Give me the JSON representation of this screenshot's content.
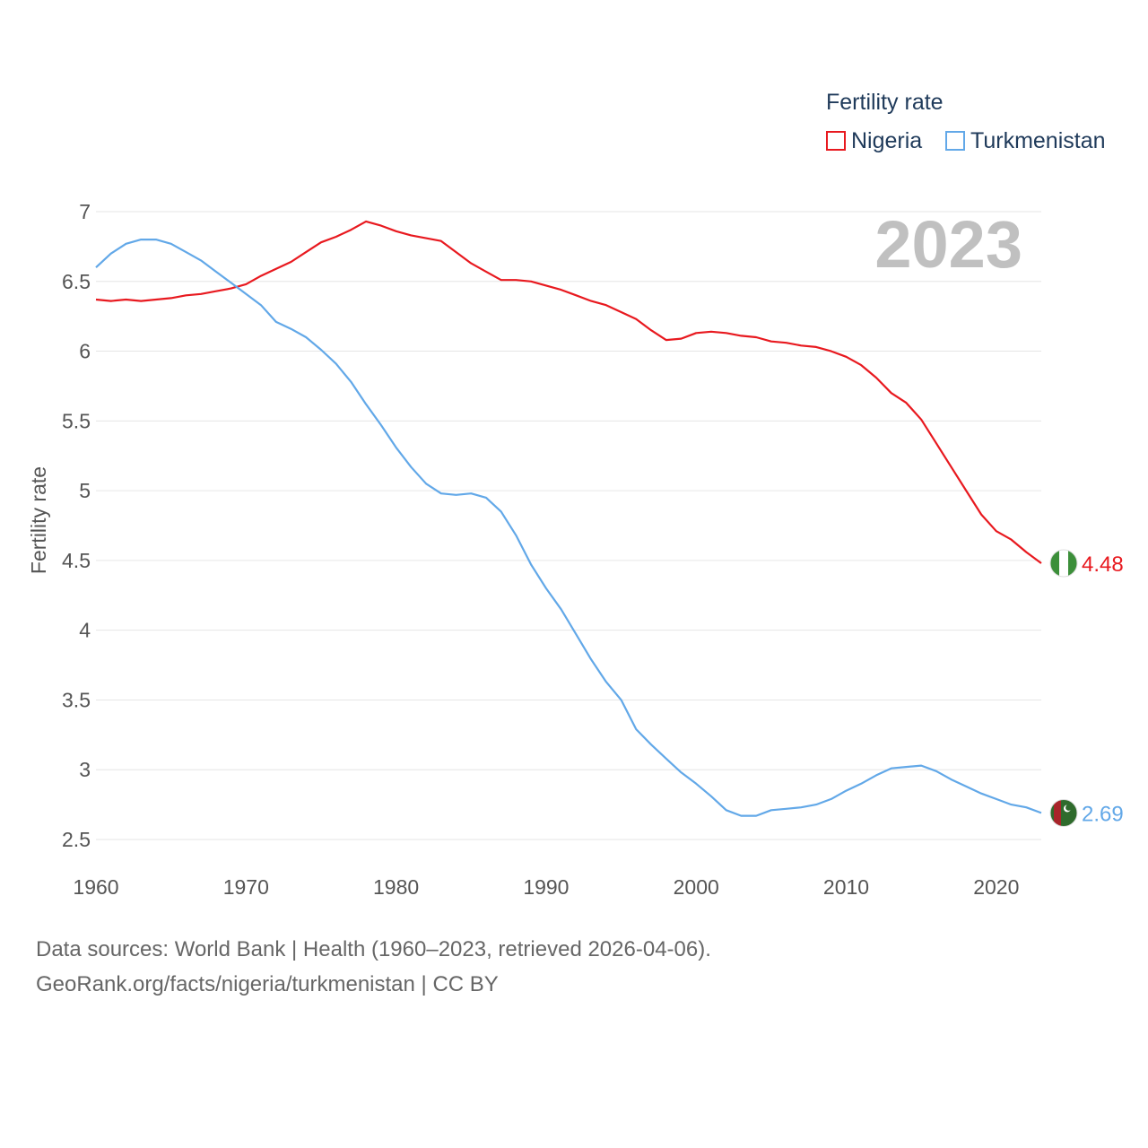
{
  "legend": {
    "title": "Fertility rate",
    "series": [
      {
        "name": "Nigeria",
        "color": "#e8191f"
      },
      {
        "name": "Turkmenistan",
        "color": "#62a8e8"
      }
    ]
  },
  "footer": {
    "line1": "Data sources: World Bank | Health (1960–2023, retrieved 2026-04-06).",
    "line2": "GeoRank.org/facts/nigeria/turkmenistan | CC BY"
  },
  "chart_data": {
    "type": "line",
    "year_label": "2023",
    "ylabel": "Fertility rate",
    "xlabel": "",
    "xlim": [
      1960,
      2023
    ],
    "ylim": [
      2.5,
      7
    ],
    "x_ticks": [
      1960,
      1970,
      1980,
      1990,
      2000,
      2010,
      2020
    ],
    "y_ticks": [
      "2.5",
      "3",
      "3.5",
      "4",
      "4.5",
      "5",
      "5.5",
      "6",
      "6.5",
      "7"
    ],
    "x": [
      1960,
      1961,
      1962,
      1963,
      1964,
      1965,
      1966,
      1967,
      1968,
      1969,
      1970,
      1971,
      1972,
      1973,
      1974,
      1975,
      1976,
      1977,
      1978,
      1979,
      1980,
      1981,
      1982,
      1983,
      1984,
      1985,
      1986,
      1987,
      1988,
      1989,
      1990,
      1991,
      1992,
      1993,
      1994,
      1995,
      1996,
      1997,
      1998,
      1999,
      2000,
      2001,
      2002,
      2003,
      2004,
      2005,
      2006,
      2007,
      2008,
      2009,
      2010,
      2011,
      2012,
      2013,
      2014,
      2015,
      2016,
      2017,
      2018,
      2019,
      2020,
      2021,
      2022,
      2023
    ],
    "series": [
      {
        "name": "Nigeria",
        "color": "#e8191f",
        "end_label": "4.48",
        "values": [
          6.37,
          6.36,
          6.37,
          6.36,
          6.37,
          6.38,
          6.4,
          6.41,
          6.43,
          6.45,
          6.48,
          6.54,
          6.59,
          6.64,
          6.71,
          6.78,
          6.82,
          6.87,
          6.93,
          6.9,
          6.86,
          6.83,
          6.81,
          6.79,
          6.71,
          6.63,
          6.57,
          6.51,
          6.51,
          6.5,
          6.47,
          6.44,
          6.4,
          6.36,
          6.33,
          6.28,
          6.23,
          6.15,
          6.08,
          6.09,
          6.13,
          6.14,
          6.13,
          6.11,
          6.1,
          6.07,
          6.06,
          6.04,
          6.03,
          6.0,
          5.96,
          5.9,
          5.81,
          5.7,
          5.63,
          5.51,
          5.34,
          5.17,
          5.0,
          4.83,
          4.71,
          4.65,
          4.56,
          4.48
        ]
      },
      {
        "name": "Turkmenistan",
        "color": "#62a8e8",
        "end_label": "2.69",
        "values": [
          6.6,
          6.7,
          6.77,
          6.8,
          6.8,
          6.77,
          6.71,
          6.65,
          6.57,
          6.49,
          6.41,
          6.33,
          6.21,
          6.16,
          6.1,
          6.01,
          5.91,
          5.78,
          5.62,
          5.47,
          5.31,
          5.17,
          5.05,
          4.98,
          4.97,
          4.98,
          4.95,
          4.85,
          4.68,
          4.47,
          4.3,
          4.15,
          3.97,
          3.79,
          3.63,
          3.5,
          3.29,
          3.18,
          3.08,
          2.98,
          2.9,
          2.81,
          2.71,
          2.67,
          2.67,
          2.71,
          2.72,
          2.73,
          2.75,
          2.79,
          2.85,
          2.9,
          2.96,
          3.01,
          3.02,
          3.03,
          2.99,
          2.93,
          2.88,
          2.83,
          2.79,
          2.75,
          2.73,
          2.69
        ]
      }
    ]
  }
}
